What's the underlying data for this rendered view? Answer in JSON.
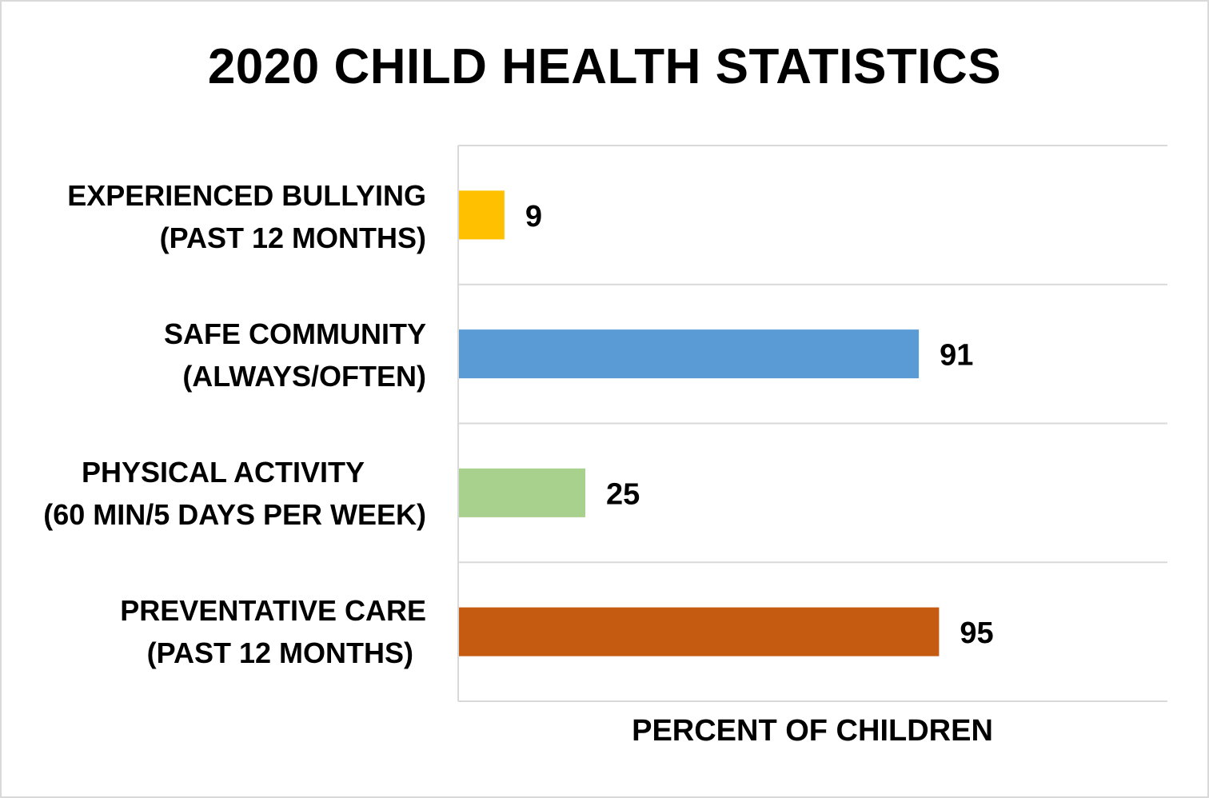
{
  "chart_data": {
    "type": "bar",
    "orientation": "horizontal",
    "title": "2020 CHILD HEALTH STATISTICS",
    "xlabel": "PERCENT OF CHILDREN",
    "ylabel": "",
    "xlim": [
      0,
      100
    ],
    "grid": true,
    "legend": "none",
    "categories": [
      [
        "EXPERIENCED BULLYING",
        "(PAST 12 MONTHS)"
      ],
      [
        "SAFE COMMUNITY",
        "(ALWAYS/OFTEN)"
      ],
      [
        "PHYSICAL ACTIVITY",
        "(60 MIN/5 DAYS PER WEEK)"
      ],
      [
        "PREVENTATIVE CARE",
        "(PAST 12 MONTHS)"
      ]
    ],
    "values": [
      9,
      91,
      25,
      95
    ],
    "data_labels": [
      "9",
      "91",
      "25",
      "95"
    ],
    "colors": [
      "#ffc000",
      "#5b9bd5",
      "#a9d18e",
      "#c55a11"
    ]
  }
}
